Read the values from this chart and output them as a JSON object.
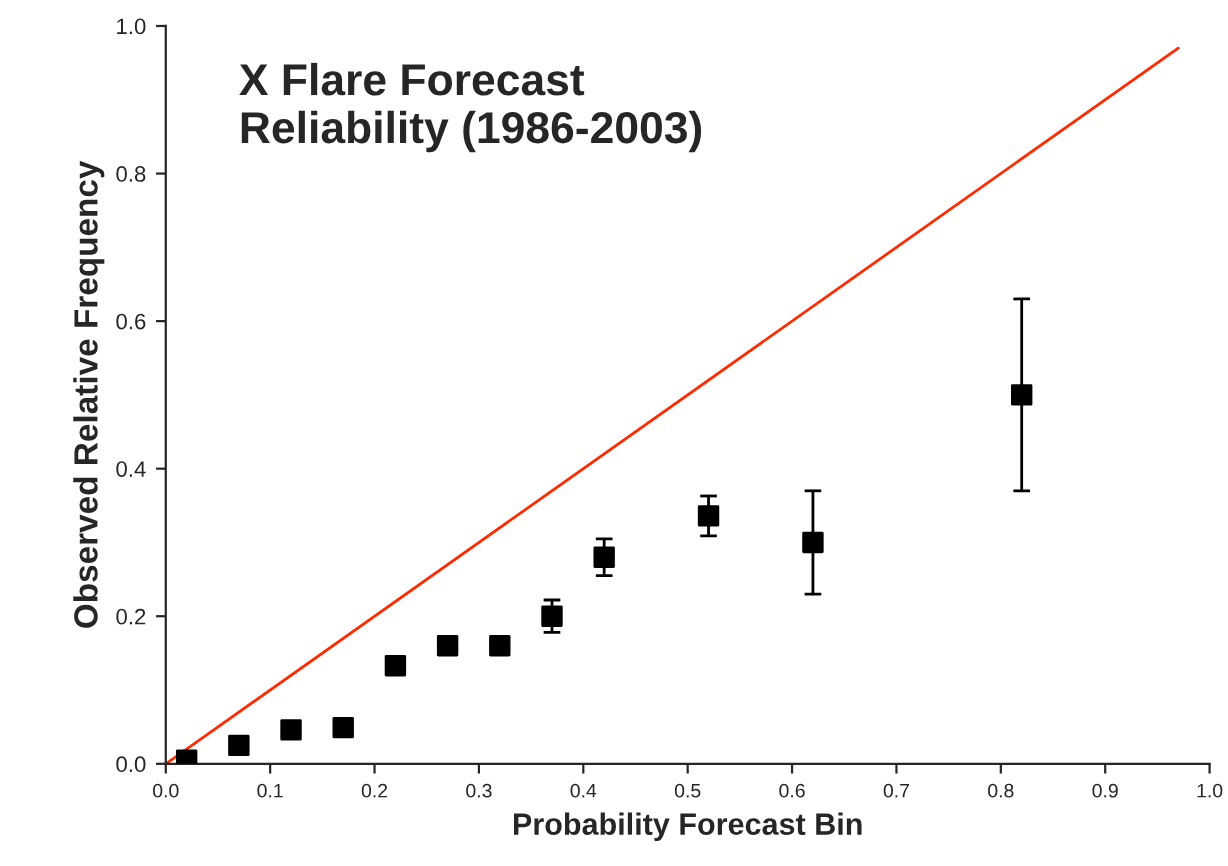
{
  "chart_data": {
    "type": "scatter",
    "title": "X Flare Forecast\nReliability (1986-2003)",
    "xlabel": "Probability Forecast Bin",
    "ylabel": "Observed Relative Frequency",
    "series": [
      {
        "type": "line",
        "color": "#ff2a00",
        "x": [
          0,
          0.97
        ],
        "values": [
          0,
          0.97
        ],
        "marker": "none"
      },
      {
        "color": "#000000",
        "marker": "square",
        "x": [
          0.02,
          0.07,
          0.12,
          0.17,
          0.22,
          0.27,
          0.32,
          0.37,
          0.42,
          0.52,
          0.62,
          0.82
        ],
        "values": [
          0.005,
          0.025,
          0.046,
          0.049,
          0.133,
          0.16,
          0.16,
          0.2,
          0.28,
          0.336,
          0.3,
          0.5
        ],
        "errors": [
          null,
          null,
          null,
          null,
          null,
          null,
          null,
          0.022,
          0.025,
          0.027,
          0.07,
          0.13
        ]
      }
    ],
    "xlim": [
      0,
      1.0
    ],
    "xticks": [
      {
        "value": 0,
        "label": "0.0"
      },
      0.1,
      0.2,
      0.3,
      0.4,
      0.5,
      0.6,
      0.7,
      0.8,
      0.9,
      {
        "value": 1,
        "label": "1.0"
      }
    ],
    "ylim": [
      0,
      1.0
    ],
    "yticks": [
      {
        "value": 0,
        "label": "0.0"
      },
      0.2,
      0.4,
      0.6,
      0.8,
      {
        "value": 1,
        "label": "1.0"
      }
    ],
    "grid": false,
    "legend": false
  }
}
